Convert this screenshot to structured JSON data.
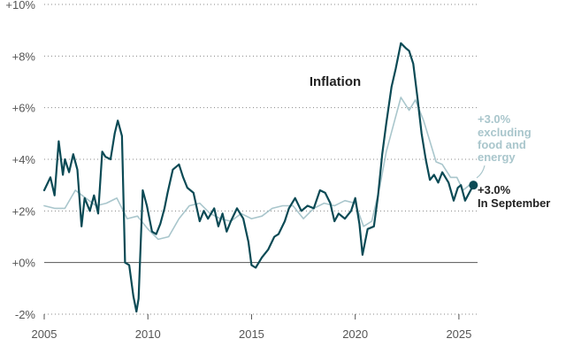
{
  "chart_data": {
    "type": "line",
    "title": "Inflation",
    "xlabel": "",
    "ylabel": "",
    "xlim": [
      2005,
      2025.9
    ],
    "ylim": [
      -2,
      10
    ],
    "x_ticks": [
      2005,
      2010,
      2015,
      2020,
      2025
    ],
    "x_tick_labels": [
      "2005",
      "2010",
      "2015",
      "2020",
      "2025"
    ],
    "y_ticks": [
      -2,
      0,
      2,
      4,
      6,
      8,
      10
    ],
    "y_tick_labels": [
      "-2%",
      "+0%",
      "+2%",
      "+4%",
      "+6%",
      "+8%",
      "+10%"
    ],
    "grid": "horizontal dotted",
    "colors": {
      "headline": "#0b4a55",
      "core": "#a9c6cc",
      "axis": "#555555",
      "text": "#222222"
    },
    "series": [
      {
        "name": "Headline inflation",
        "x": [
          2005,
          2005.3,
          2005.5,
          2005.7,
          2005.9,
          2006.0,
          2006.2,
          2006.4,
          2006.6,
          2006.8,
          2006.95,
          2007.2,
          2007.4,
          2007.6,
          2007.8,
          2007.95,
          2008.2,
          2008.4,
          2008.55,
          2008.75,
          2008.9,
          2009.1,
          2009.3,
          2009.45,
          2009.55,
          2009.75,
          2009.95,
          2010.2,
          2010.4,
          2010.6,
          2010.8,
          2010.95,
          2011.2,
          2011.5,
          2011.7,
          2011.9,
          2012.2,
          2012.5,
          2012.7,
          2012.9,
          2013.2,
          2013.4,
          2013.6,
          2013.8,
          2014.0,
          2014.3,
          2014.6,
          2014.85,
          2015.0,
          2015.2,
          2015.5,
          2015.8,
          2016.1,
          2016.3,
          2016.6,
          2016.8,
          2017.1,
          2017.4,
          2017.7,
          2018.0,
          2018.3,
          2018.55,
          2018.8,
          2019.0,
          2019.2,
          2019.5,
          2019.8,
          2020.0,
          2020.2,
          2020.35,
          2020.6,
          2020.9,
          2021.1,
          2021.3,
          2021.5,
          2021.75,
          2021.95,
          2022.2,
          2022.45,
          2022.6,
          2022.8,
          2023.0,
          2023.2,
          2023.4,
          2023.6,
          2023.8,
          2024.0,
          2024.2,
          2024.5,
          2024.75,
          2024.95,
          2025.1,
          2025.3,
          2025.5,
          2025.7
        ],
        "values": [
          2.8,
          3.3,
          2.6,
          4.7,
          3.4,
          4.0,
          3.5,
          4.2,
          3.6,
          1.4,
          2.5,
          2.0,
          2.6,
          1.9,
          4.3,
          4.1,
          4.0,
          5.0,
          5.5,
          4.9,
          0.0,
          -0.1,
          -1.3,
          -1.9,
          -1.4,
          2.8,
          2.2,
          1.2,
          1.1,
          1.5,
          2.1,
          2.7,
          3.6,
          3.8,
          3.3,
          2.9,
          2.7,
          1.6,
          2.0,
          1.7,
          2.1,
          1.4,
          1.9,
          1.2,
          1.6,
          2.1,
          1.7,
          0.8,
          -0.1,
          -0.2,
          0.2,
          0.5,
          1.0,
          1.1,
          1.6,
          2.1,
          2.5,
          2.0,
          2.2,
          2.1,
          2.8,
          2.7,
          2.3,
          1.6,
          1.9,
          1.7,
          2.0,
          2.5,
          1.5,
          0.3,
          1.3,
          1.4,
          2.6,
          4.2,
          5.4,
          6.8,
          7.5,
          8.5,
          8.3,
          8.2,
          7.7,
          6.4,
          5.0,
          4.0,
          3.2,
          3.4,
          3.1,
          3.5,
          3.1,
          2.4,
          2.9,
          3.0,
          2.4,
          2.7,
          3.0
        ]
      },
      {
        "name": "Excluding food and energy",
        "x": [
          2005,
          2005.5,
          2006.0,
          2006.5,
          2007.0,
          2007.5,
          2008.0,
          2008.5,
          2009.0,
          2009.5,
          2010.0,
          2010.5,
          2011.0,
          2011.5,
          2012.0,
          2012.5,
          2013.0,
          2013.5,
          2014.0,
          2014.5,
          2015.0,
          2015.5,
          2016.0,
          2016.5,
          2017.0,
          2017.5,
          2018.0,
          2018.5,
          2019.0,
          2019.5,
          2020.0,
          2020.4,
          2020.8,
          2021.2,
          2021.5,
          2021.9,
          2022.2,
          2022.6,
          2022.9,
          2023.3,
          2023.6,
          2023.9,
          2024.2,
          2024.6,
          2024.9,
          2025.2,
          2025.5,
          2025.7
        ],
        "values": [
          2.2,
          2.1,
          2.1,
          2.8,
          2.5,
          2.2,
          2.3,
          2.5,
          1.7,
          1.8,
          1.3,
          0.9,
          1.0,
          1.7,
          2.2,
          2.3,
          1.9,
          1.7,
          1.6,
          1.9,
          1.7,
          1.8,
          2.1,
          2.2,
          2.2,
          1.7,
          2.1,
          2.3,
          2.2,
          2.4,
          2.3,
          1.4,
          1.6,
          3.0,
          4.3,
          5.5,
          6.4,
          5.9,
          6.3,
          5.5,
          4.7,
          3.9,
          3.8,
          3.3,
          3.3,
          2.8,
          3.0,
          3.0
        ]
      }
    ],
    "annotations": {
      "core_label": [
        "+3.0%",
        "excluding",
        "food and",
        "energy"
      ],
      "headline_label": [
        "+3.0%",
        "In September"
      ]
    }
  }
}
